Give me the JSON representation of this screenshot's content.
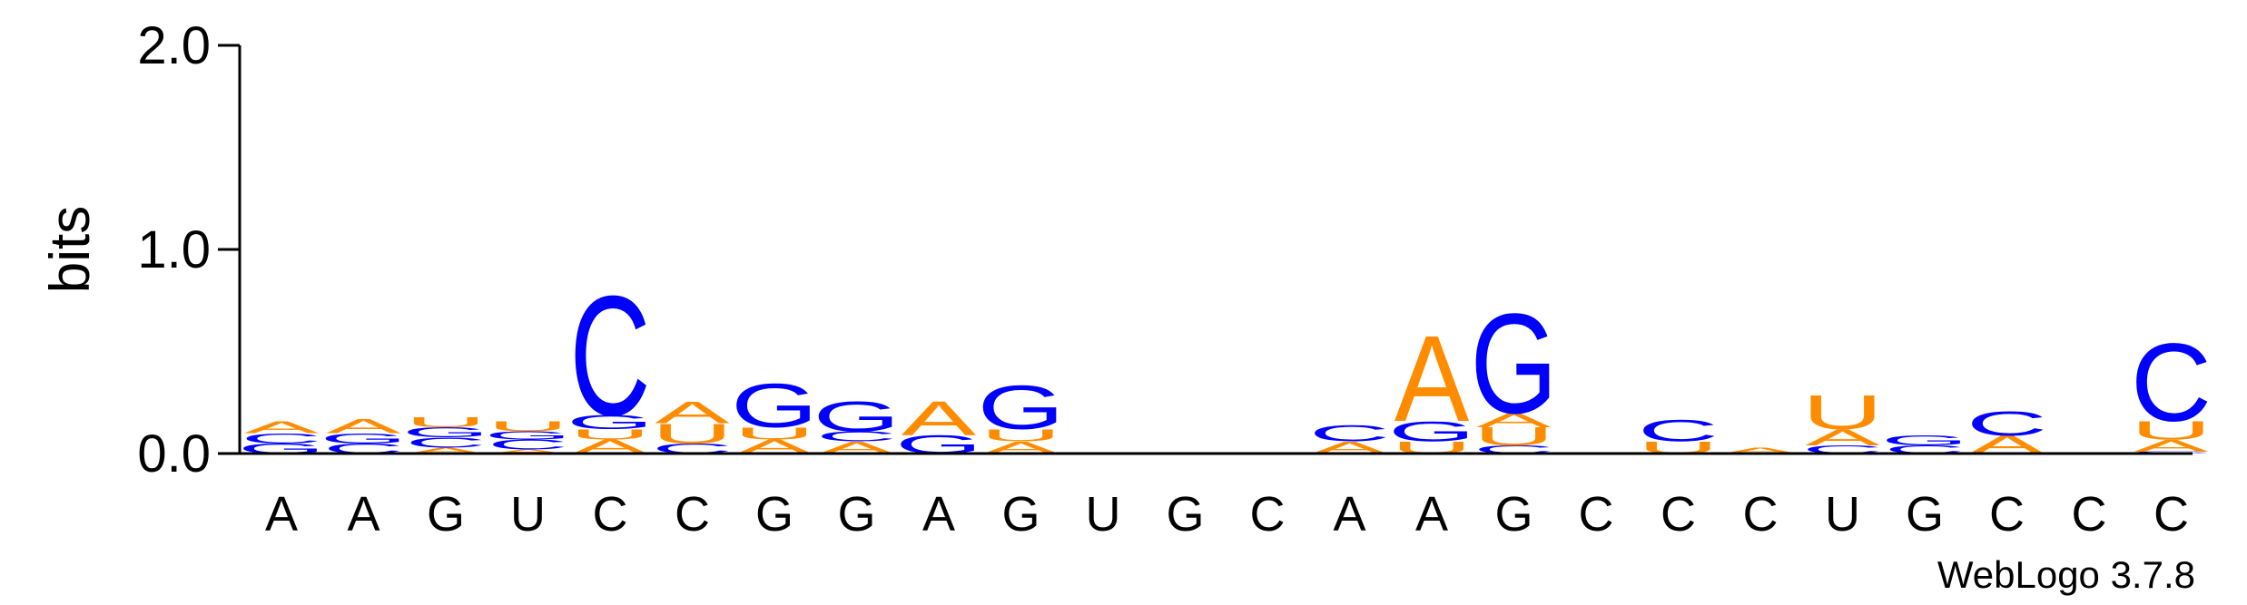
{
  "chart_data": {
    "type": "sequence-logo",
    "ylabel": "bits",
    "ylim": [
      0,
      2.0
    ],
    "yticks": [
      "0.0",
      "1.0",
      "2.0"
    ],
    "colors": {
      "A": "#ff8c00",
      "C": "#0000ff",
      "G": "#0000ff",
      "U": "#ff8c00"
    },
    "x_labels": [
      "A",
      "A",
      "G",
      "U",
      "C",
      "C",
      "G",
      "G",
      "A",
      "G",
      "U",
      "G",
      "C",
      "A",
      "A",
      "G",
      "C",
      "C",
      "C",
      "U",
      "G",
      "C",
      "C",
      "C"
    ],
    "positions": [
      {
        "stack": [
          [
            "G",
            0.05
          ],
          [
            "C",
            0.05
          ],
          [
            "A",
            0.06
          ]
        ]
      },
      {
        "stack": [
          [
            "C",
            0.05
          ],
          [
            "G",
            0.05
          ],
          [
            "A",
            0.07
          ]
        ]
      },
      {
        "stack": [
          [
            "A",
            0.03
          ],
          [
            "C",
            0.05
          ],
          [
            "G",
            0.05
          ],
          [
            "U",
            0.05
          ]
        ]
      },
      {
        "stack": [
          [
            "A",
            0.02
          ],
          [
            "C",
            0.05
          ],
          [
            "G",
            0.04
          ],
          [
            "U",
            0.05
          ]
        ]
      },
      {
        "stack": [
          [
            "A",
            0.07
          ],
          [
            "U",
            0.05
          ],
          [
            "G",
            0.07
          ],
          [
            "C",
            0.6
          ]
        ]
      },
      {
        "stack": [
          [
            "C",
            0.05
          ],
          [
            "U",
            0.1
          ],
          [
            "A",
            0.11
          ]
        ]
      },
      {
        "stack": [
          [
            "A",
            0.07
          ],
          [
            "U",
            0.06
          ],
          [
            "G",
            0.22
          ]
        ]
      },
      {
        "stack": [
          [
            "A",
            0.06
          ],
          [
            "C",
            0.05
          ],
          [
            "G",
            0.15
          ]
        ]
      },
      {
        "stack": [
          [
            "G",
            0.09
          ],
          [
            "A",
            0.17
          ]
        ]
      },
      {
        "stack": [
          [
            "A",
            0.06
          ],
          [
            "U",
            0.06
          ],
          [
            "G",
            0.22
          ]
        ]
      },
      {
        "stack": []
      },
      {
        "stack": []
      },
      {
        "stack": []
      },
      {
        "stack": [
          [
            "A",
            0.06
          ],
          [
            "C",
            0.08
          ]
        ]
      },
      {
        "stack": [
          [
            "U",
            0.06
          ],
          [
            "G",
            0.1
          ],
          [
            "A",
            0.43
          ]
        ]
      },
      {
        "stack": [
          [
            "C",
            0.04
          ],
          [
            "U",
            0.09
          ],
          [
            "A",
            0.07
          ],
          [
            "G",
            0.5
          ]
        ]
      },
      {
        "stack": []
      },
      {
        "stack": [
          [
            "U",
            0.06
          ],
          [
            "C",
            0.11
          ]
        ]
      },
      {
        "stack": [
          [
            "A",
            0.03
          ]
        ]
      },
      {
        "stack": [
          [
            "C",
            0.04
          ],
          [
            "A",
            0.08
          ],
          [
            "U",
            0.17
          ]
        ]
      },
      {
        "stack": [
          [
            "C",
            0.04
          ],
          [
            "G",
            0.05
          ]
        ]
      },
      {
        "stack": [
          [
            "A",
            0.09
          ],
          [
            "C",
            0.12
          ]
        ]
      },
      {
        "stack": []
      },
      {
        "stack": [
          [
            "C",
            0.01
          ],
          [
            "A",
            0.06
          ],
          [
            "U",
            0.09
          ],
          [
            "C",
            0.39
          ]
        ]
      }
    ],
    "credit": "WebLogo 3.7.8"
  }
}
